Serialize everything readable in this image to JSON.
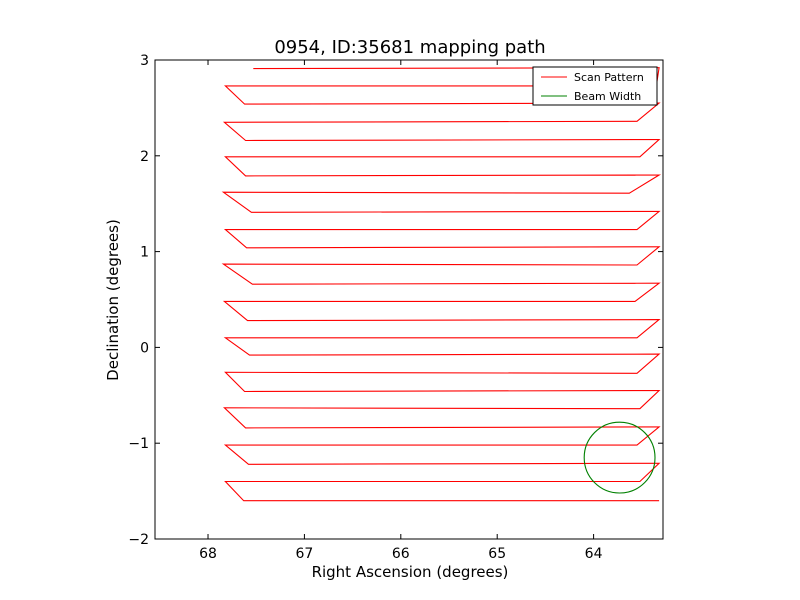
{
  "chart_data": {
    "type": "line",
    "title": "0954, ID:35681 mapping path",
    "xlabel": "Right Ascension (degrees)",
    "ylabel": "Declination (degrees)",
    "xlim": [
      68.55,
      63.28
    ],
    "ylim": [
      -2,
      3
    ],
    "x_inverted": true,
    "xticks": [
      68,
      67,
      66,
      65,
      64
    ],
    "yticks": [
      -2,
      -1,
      0,
      1,
      2,
      3
    ],
    "xtick_labels": [
      "68",
      "67",
      "66",
      "65",
      "64"
    ],
    "ytick_labels": [
      "−2",
      "−1",
      "0",
      "1",
      "2",
      "3"
    ],
    "grid": false,
    "legend_position": "top-right",
    "legend": [
      {
        "label": "Scan Pattern",
        "color": "#ff0000"
      },
      {
        "label": "Beam Width",
        "color": "#008000"
      }
    ],
    "series": [
      {
        "name": "Scan Pattern",
        "color": "#ff0000",
        "rows_top_to_bottom": [
          {
            "dec_left": 2.91,
            "dec_right": 2.92,
            "ra_left": 67.53,
            "ra_right": 63.32,
            "left_turn": false,
            "right_turn": true
          },
          {
            "dec_left": 2.73,
            "dec_right": 2.73,
            "ra_left": 67.82,
            "ra_right": 63.35
          },
          {
            "dec_left": 2.54,
            "dec_right": 2.55,
            "ra_left": 67.62,
            "ra_right": 63.32
          },
          {
            "dec_left": 2.35,
            "dec_right": 2.36,
            "ra_left": 67.83,
            "ra_right": 63.55
          },
          {
            "dec_left": 2.16,
            "dec_right": 2.17,
            "ra_left": 67.61,
            "ra_right": 63.32
          },
          {
            "dec_left": 1.99,
            "dec_right": 1.99,
            "ra_left": 67.82,
            "ra_right": 63.52
          },
          {
            "dec_left": 1.79,
            "dec_right": 1.8,
            "ra_left": 67.61,
            "ra_right": 63.32
          },
          {
            "dec_left": 1.62,
            "dec_right": 1.61,
            "ra_left": 67.84,
            "ra_right": 63.63
          },
          {
            "dec_left": 1.41,
            "dec_right": 1.42,
            "ra_left": 67.55,
            "ra_right": 63.32
          },
          {
            "dec_left": 1.23,
            "dec_right": 1.23,
            "ra_left": 67.82,
            "ra_right": 63.55
          },
          {
            "dec_left": 1.04,
            "dec_right": 1.05,
            "ra_left": 67.6,
            "ra_right": 63.32
          },
          {
            "dec_left": 0.87,
            "dec_right": 0.86,
            "ra_left": 67.84,
            "ra_right": 63.55
          },
          {
            "dec_left": 0.66,
            "dec_right": 0.67,
            "ra_left": 67.54,
            "ra_right": 63.32
          },
          {
            "dec_left": 0.48,
            "dec_right": 0.48,
            "ra_left": 67.83,
            "ra_right": 63.57
          },
          {
            "dec_left": 0.28,
            "dec_right": 0.29,
            "ra_left": 67.59,
            "ra_right": 63.32
          },
          {
            "dec_left": 0.1,
            "dec_right": 0.1,
            "ra_left": 67.82,
            "ra_right": 63.55
          },
          {
            "dec_left": -0.08,
            "dec_right": -0.07,
            "ra_left": 67.57,
            "ra_right": 63.32
          },
          {
            "dec_left": -0.26,
            "dec_right": -0.27,
            "ra_left": 67.82,
            "ra_right": 63.55
          },
          {
            "dec_left": -0.46,
            "dec_right": -0.45,
            "ra_left": 67.62,
            "ra_right": 63.32
          },
          {
            "dec_left": -0.63,
            "dec_right": -0.64,
            "ra_left": 67.83,
            "ra_right": 63.52
          },
          {
            "dec_left": -0.84,
            "dec_right": -0.83,
            "ra_left": 67.61,
            "ra_right": 63.32
          },
          {
            "dec_left": -1.02,
            "dec_right": -1.02,
            "ra_left": 67.82,
            "ra_right": 63.55
          },
          {
            "dec_left": -1.22,
            "dec_right": -1.21,
            "ra_left": 67.58,
            "ra_right": 63.32
          },
          {
            "dec_left": -1.4,
            "dec_right": -1.4,
            "ra_left": 67.82,
            "ra_right": 63.52
          },
          {
            "dec_left": -1.6,
            "dec_right": -1.6,
            "ra_left": 67.63,
            "ra_right": 63.32
          }
        ]
      },
      {
        "name": "Beam Width",
        "color": "#008000",
        "shape": "circle",
        "center": [
          63.73,
          -1.15
        ],
        "radius_dec": 0.37
      }
    ]
  }
}
